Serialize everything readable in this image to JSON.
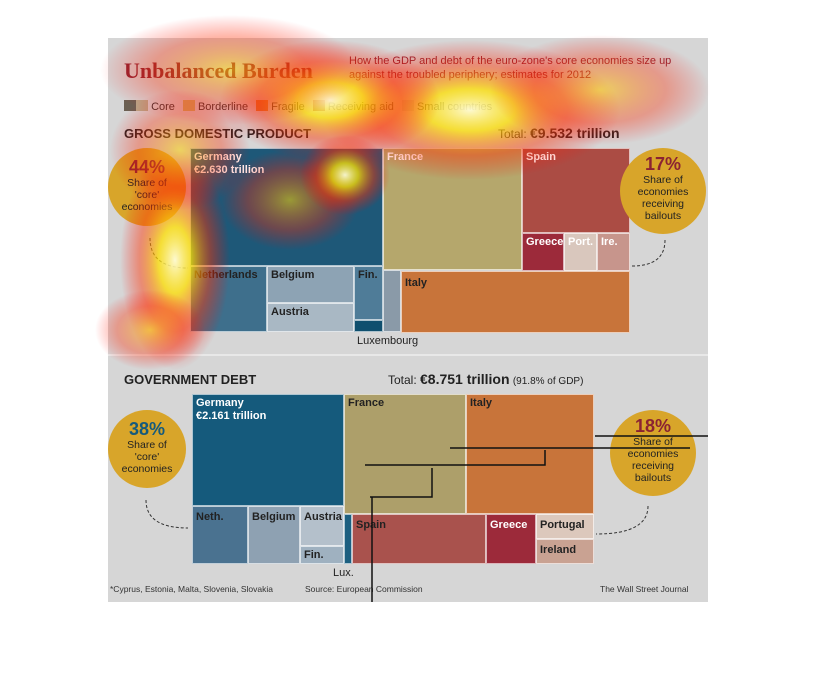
{
  "header": {
    "title": "Unbalanced Burden",
    "subtitle": "How the GDP and debt of the euro-zone's core economies size up against the troubled periphery; estimates for 2012"
  },
  "legend": [
    {
      "label": "Core",
      "colors": [
        "#6b6053",
        "#b7a98a"
      ]
    },
    {
      "label": "Borderline",
      "colors": [
        "#c9b66a"
      ]
    },
    {
      "label": "Fragile",
      "colors": [
        "#d7853a"
      ]
    },
    {
      "label": "Receiving aid",
      "colors": [
        "#a03c3c"
      ]
    },
    {
      "label": "Small countries",
      "colors": [
        "#bfbfbf"
      ]
    }
  ],
  "gdp": {
    "heading": "GROSS DOMESTIC PRODUCT",
    "total_label": "Total: ",
    "total_value": "€9.532 trillion",
    "core_circle": {
      "pct": "44%",
      "text": [
        "Share of",
        "'core'",
        "economies"
      ]
    },
    "bailout_circle": {
      "pct": "17%",
      "text": [
        "Share of",
        "economies",
        "receiving",
        "bailouts"
      ]
    },
    "outside_label": "Luxembourg"
  },
  "debt": {
    "heading": "GOVERNMENT DEBT",
    "total_label": "Total: ",
    "total_value": "€8.751 trillion",
    "total_note": "(91.8% of GDP)",
    "core_circle": {
      "pct": "38%",
      "text": [
        "Share of",
        "'core'",
        "economies"
      ]
    },
    "bailout_circle": {
      "pct": "18%",
      "text": [
        "Share of",
        "economies",
        "receiving",
        "bailouts"
      ]
    },
    "outside_label": "Lux."
  },
  "footer": {
    "note": "*Cyprus, Estonia, Malta, Slovenia, Slovakia",
    "source": "Source: European Commission",
    "credit": "The Wall Street Journal"
  },
  "chart_data": [
    {
      "type": "treemap",
      "title": "GROSS DOMESTIC PRODUCT",
      "total": "€9.532 trillion",
      "tiles": [
        {
          "name": "Germany",
          "label": "€2.630 trillion",
          "group": "Core",
          "color": "#1e5878"
        },
        {
          "name": "France",
          "group": "Borderline",
          "color": "#b5a76c"
        },
        {
          "name": "Italy",
          "group": "Fragile",
          "color": "#c8743a"
        },
        {
          "name": "Spain",
          "group": "Fragile",
          "color": "#ab4c44"
        },
        {
          "name": "Netherlands",
          "group": "Core",
          "color": "#3e6f8c"
        },
        {
          "name": "Belgium",
          "group": "Borderline",
          "color": "#8da3b4"
        },
        {
          "name": "Austria",
          "group": "Core",
          "color": "#a9b8c4"
        },
        {
          "name": "Fin.",
          "group": "Core",
          "color": "#4f7c98"
        },
        {
          "name": "Greece",
          "group": "Receiving aid",
          "color": "#9c2a3a"
        },
        {
          "name": "Port.",
          "group": "Receiving aid",
          "color": "#d9c7bd"
        },
        {
          "name": "Ire.",
          "group": "Receiving aid",
          "color": "#c7958c"
        }
      ]
    },
    {
      "type": "treemap",
      "title": "GOVERNMENT DEBT",
      "total": "€8.751 trillion",
      "tiles": [
        {
          "name": "Germany",
          "label": "€2.161 trillion",
          "group": "Core",
          "color": "#155a7c"
        },
        {
          "name": "France",
          "group": "Borderline",
          "color": "#ad9f6a"
        },
        {
          "name": "Italy",
          "group": "Fragile",
          "color": "#c8743a"
        },
        {
          "name": "Spain",
          "group": "Fragile",
          "color": "#a9524d"
        },
        {
          "name": "Neth.",
          "group": "Core",
          "color": "#4a7290"
        },
        {
          "name": "Belgium",
          "group": "Borderline",
          "color": "#8ea1b2"
        },
        {
          "name": "Austria",
          "group": "Core",
          "color": "#b4c0cb"
        },
        {
          "name": "Fin.",
          "group": "Core",
          "color": "#9fb1c0"
        },
        {
          "name": "Greece",
          "group": "Receiving aid",
          "color": "#9c2a3a"
        },
        {
          "name": "Portugal",
          "group": "Receiving aid",
          "color": "#dcc8bc"
        },
        {
          "name": "Ireland",
          "group": "Receiving aid",
          "color": "#c9a292"
        }
      ]
    }
  ]
}
